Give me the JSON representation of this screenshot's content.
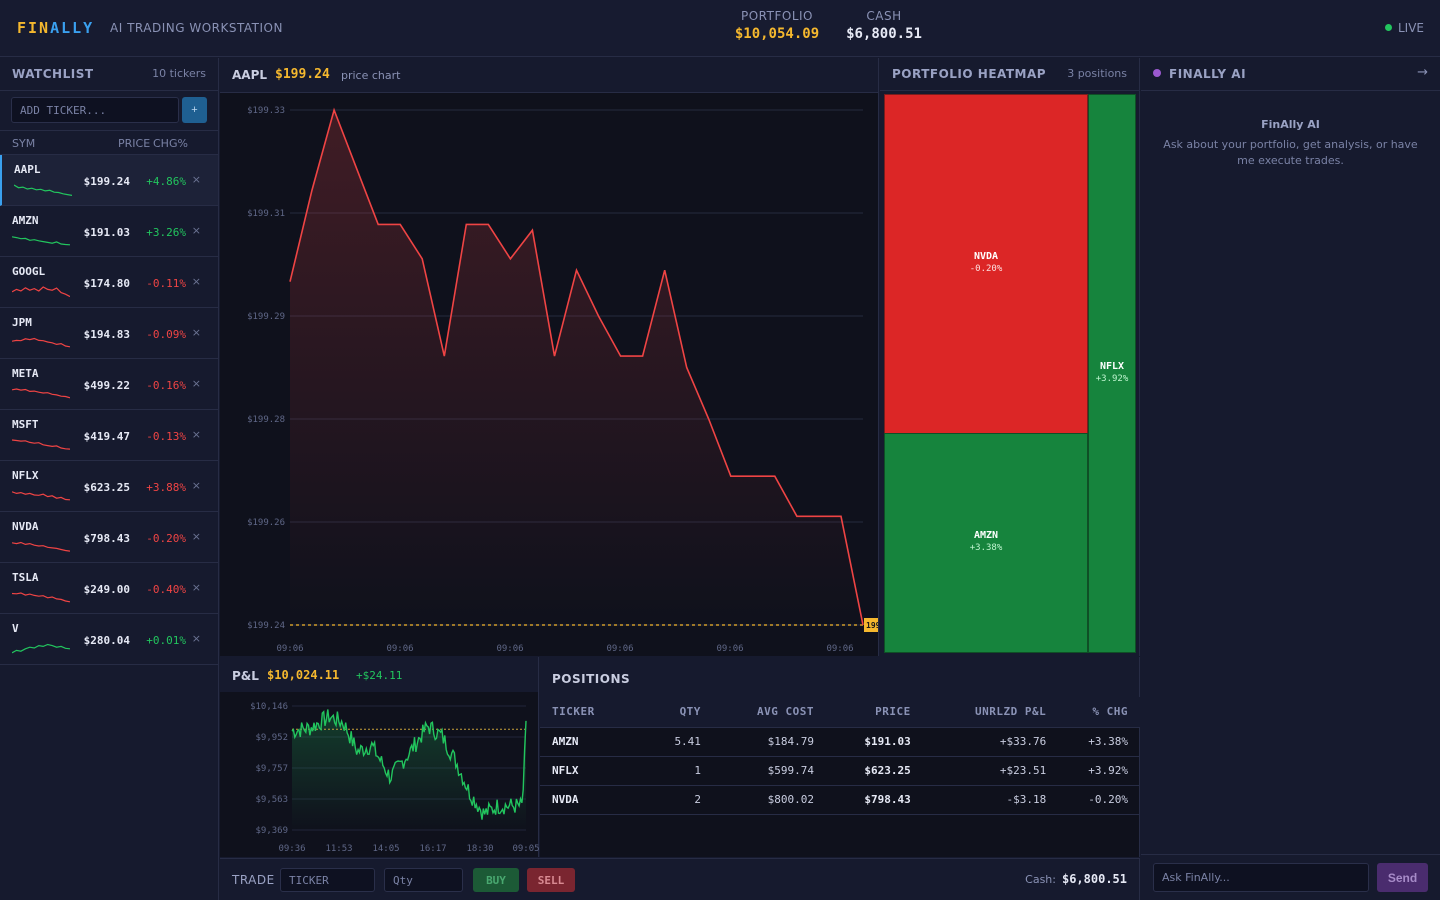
{
  "header": {
    "logo_a": "FIN",
    "logo_b": "ALLY",
    "subtitle": "AI TRADING WORKSTATION",
    "portfolio_label": "PORTFOLIO",
    "portfolio_value": "$10,054.09",
    "cash_label": "CASH",
    "cash_value": "$6,800.51",
    "status": "LIVE",
    "colors": {
      "accent": "#f5b82e",
      "blue": "#3aa0ef",
      "live": "#22c55e"
    }
  },
  "watchlist": {
    "title": "WATCHLIST",
    "count": "10 tickers",
    "add_placeholder": "ADD TICKER...",
    "add_button": "+",
    "col_sym": "SYM",
    "col_price": "PRICE",
    "col_chg": "CHG%",
    "remove_icon": "×",
    "items": [
      {
        "sym": "AAPL",
        "price": "$199.24",
        "chg": "+4.86%",
        "dir": "pos",
        "spark": [
          0.75,
          0.58,
          0.62,
          0.5,
          0.55,
          0.45,
          0.48,
          0.38,
          0.42,
          0.3,
          0.28,
          0.2,
          0.15,
          0.1
        ]
      },
      {
        "sym": "AMZN",
        "price": "$191.03",
        "chg": "+3.26%",
        "dir": "pos",
        "spark": [
          0.7,
          0.65,
          0.58,
          0.6,
          0.48,
          0.52,
          0.45,
          0.4,
          0.35,
          0.3,
          0.38,
          0.25,
          0.22,
          0.2
        ]
      },
      {
        "sym": "GOOGL",
        "price": "$174.80",
        "chg": "-0.11%",
        "dir": "neg",
        "spark": [
          0.45,
          0.6,
          0.5,
          0.7,
          0.55,
          0.65,
          0.5,
          0.75,
          0.6,
          0.55,
          0.68,
          0.4,
          0.3,
          0.15
        ]
      },
      {
        "sym": "JPM",
        "price": "$194.83",
        "chg": "-0.09%",
        "dir": "neg",
        "spark": [
          0.55,
          0.6,
          0.58,
          0.7,
          0.65,
          0.72,
          0.6,
          0.58,
          0.5,
          0.45,
          0.35,
          0.4,
          0.25,
          0.2
        ]
      },
      {
        "sym": "META",
        "price": "$499.22",
        "chg": "-0.16%",
        "dir": "neg",
        "spark": [
          0.7,
          0.75,
          0.68,
          0.72,
          0.6,
          0.62,
          0.55,
          0.5,
          0.52,
          0.42,
          0.38,
          0.3,
          0.28,
          0.2
        ]
      },
      {
        "sym": "MSFT",
        "price": "$419.47",
        "chg": "-0.13%",
        "dir": "neg",
        "spark": [
          0.75,
          0.72,
          0.68,
          0.7,
          0.6,
          0.55,
          0.58,
          0.45,
          0.4,
          0.35,
          0.38,
          0.25,
          0.2,
          0.18
        ]
      },
      {
        "sym": "NFLX",
        "price": "$623.25",
        "chg": "+3.88%",
        "dir": "neg",
        "spark": [
          0.7,
          0.6,
          0.65,
          0.55,
          0.6,
          0.5,
          0.48,
          0.55,
          0.4,
          0.45,
          0.3,
          0.35,
          0.22,
          0.2
        ]
      },
      {
        "sym": "NVDA",
        "price": "$798.43",
        "chg": "-0.20%",
        "dir": "neg",
        "spark": [
          0.7,
          0.65,
          0.72,
          0.6,
          0.65,
          0.55,
          0.5,
          0.52,
          0.42,
          0.38,
          0.35,
          0.28,
          0.22,
          0.18
        ]
      },
      {
        "sym": "TSLA",
        "price": "$249.00",
        "chg": "-0.40%",
        "dir": "neg",
        "spark": [
          0.72,
          0.7,
          0.75,
          0.62,
          0.68,
          0.6,
          0.55,
          0.58,
          0.45,
          0.5,
          0.38,
          0.35,
          0.25,
          0.2
        ]
      },
      {
        "sym": "V",
        "price": "$280.04",
        "chg": "+0.01%",
        "dir": "pos",
        "spark": [
          0.2,
          0.35,
          0.3,
          0.45,
          0.55,
          0.5,
          0.65,
          0.6,
          0.72,
          0.65,
          0.55,
          0.6,
          0.48,
          0.45
        ]
      }
    ]
  },
  "main_chart": {
    "symbol": "AAPL",
    "price": "$199.24",
    "label": "price chart",
    "last_price_tag": "199"
  },
  "chart_data": [
    {
      "type": "line",
      "name": "AAPL price chart",
      "y_ticks": [
        "$199.33",
        "$199.31",
        "$199.29",
        "$199.28",
        "$199.26",
        "$199.24"
      ],
      "x_ticks": [
        "09:06",
        "09:06",
        "09:06",
        "09:06",
        "09:06",
        "09:06"
      ],
      "ylim": [
        199.238,
        199.332
      ],
      "y": [
        199.3,
        199.316,
        199.33,
        199.32,
        199.31,
        199.31,
        199.304,
        199.287,
        199.31,
        199.31,
        199.304,
        199.309,
        199.287,
        199.302,
        199.294,
        199.287,
        199.287,
        199.302,
        199.285,
        199.276,
        199.266,
        199.266,
        199.266,
        199.259,
        199.259,
        199.259,
        199.24
      ],
      "reference_line": 199.24,
      "color": "#ef4444"
    },
    {
      "type": "line",
      "name": "P&L",
      "y_ticks": [
        "$10,146",
        "$9,952",
        "$9,757",
        "$9,563",
        "$9,369"
      ],
      "x_ticks": [
        "09:36",
        "11:53",
        "14:05",
        "16:17",
        "18:30",
        "09:05"
      ],
      "ylim": [
        9369,
        10146
      ],
      "baseline": 10000,
      "color": "#22c55e"
    }
  ],
  "heatmap": {
    "title": "PORTFOLIO HEATMAP",
    "count": "3 positions",
    "tiles": [
      {
        "sym": "NVDA",
        "chg": "-0.20%",
        "color": "#dc2626"
      },
      {
        "sym": "AMZN",
        "chg": "+3.38%",
        "color": "#16843d"
      },
      {
        "sym": "NFLX",
        "chg": "+3.92%",
        "color": "#16843d"
      }
    ]
  },
  "pnl": {
    "label": "P&L",
    "value": "$10,024.11",
    "change": "+$24.11"
  },
  "positions": {
    "title": "POSITIONS",
    "columns": [
      "TICKER",
      "QTY",
      "AVG COST",
      "PRICE",
      "UNRLZD P&L",
      "% CHG"
    ],
    "rows": [
      {
        "ticker": "AMZN",
        "qty": "5.41",
        "avg": "$184.79",
        "price": "$191.03",
        "pnl": "+$33.76",
        "pct": "+3.38%",
        "dir": "pos"
      },
      {
        "ticker": "NFLX",
        "qty": "1",
        "avg": "$599.74",
        "price": "$623.25",
        "pnl": "+$23.51",
        "pct": "+3.92%",
        "dir": "pos"
      },
      {
        "ticker": "NVDA",
        "qty": "2",
        "avg": "$800.02",
        "price": "$798.43",
        "pnl": "-$3.18",
        "pct": "-0.20%",
        "dir": "neg"
      }
    ]
  },
  "trade": {
    "label": "TRADE",
    "ticker_placeholder": "TICKER",
    "qty_placeholder": "Qty",
    "buy": "BUY",
    "sell": "SELL",
    "cash_label": "Cash:",
    "cash_value": "$6,800.51"
  },
  "ai": {
    "title": "FINALLY AI",
    "collapse_icon": "→",
    "welcome_title": "FinAlly AI",
    "welcome_body": "Ask about your portfolio, get analysis, or have me execute trades.",
    "input_placeholder": "Ask FinAlly...",
    "send": "Send"
  }
}
